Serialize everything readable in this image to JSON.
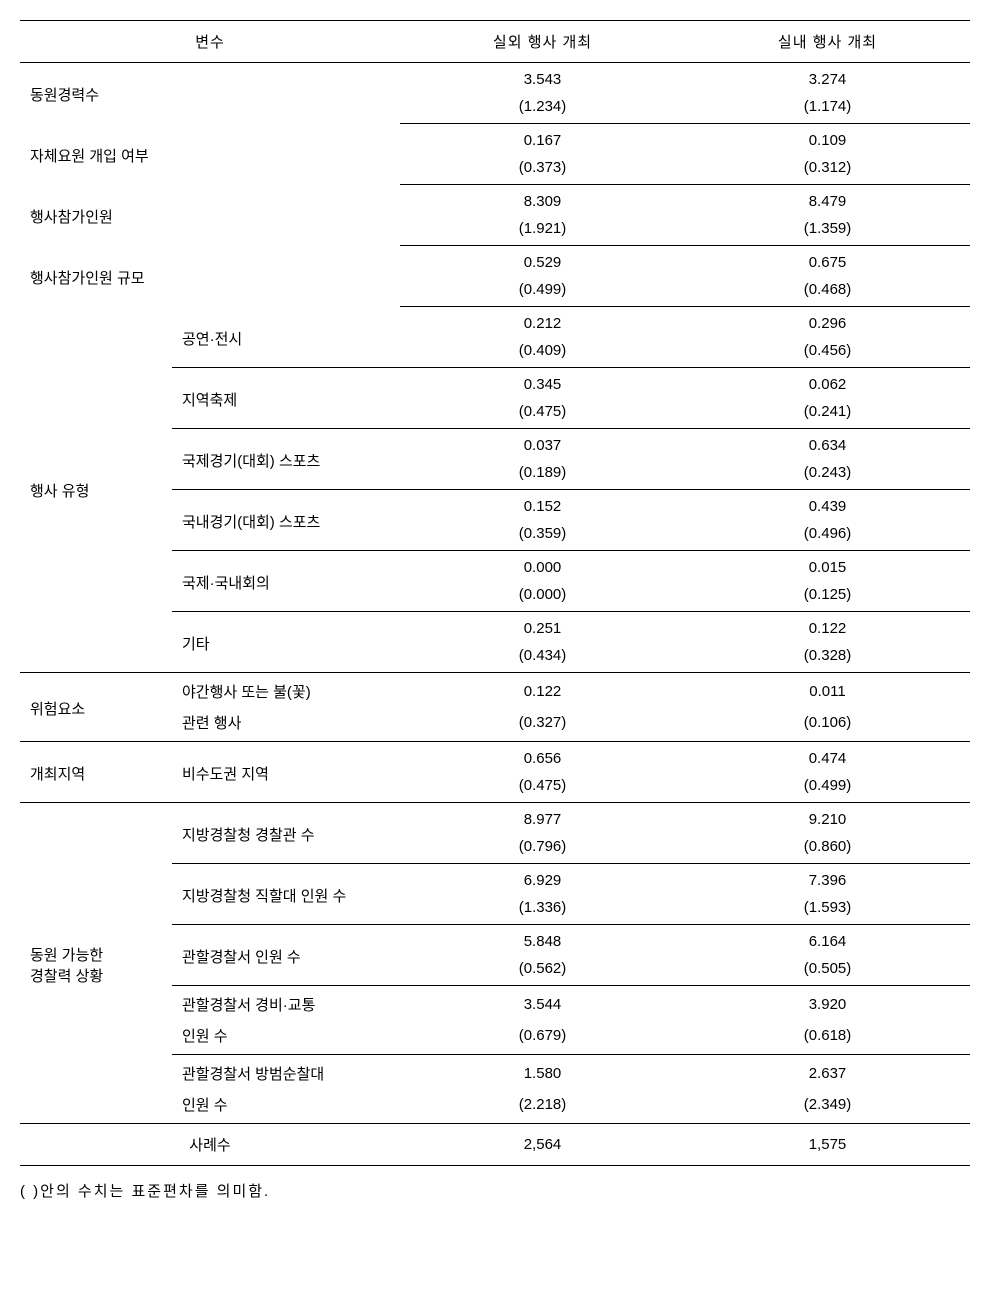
{
  "header": {
    "col1": "변수",
    "col2": "실외 행사 개최",
    "col3": "실내 행사 개최"
  },
  "rows": [
    {
      "label": "동원경력수",
      "span": 2,
      "outdoor_m": "3.543",
      "outdoor_sd": "(1.234)",
      "indoor_m": "3.274",
      "indoor_sd": "(1.174)"
    },
    {
      "label": "자체요원 개입 여부",
      "span": 2,
      "outdoor_m": "0.167",
      "outdoor_sd": "(0.373)",
      "indoor_m": "0.109",
      "indoor_sd": "(0.312)"
    },
    {
      "label": "행사참가인원",
      "span": 2,
      "outdoor_m": "8.309",
      "outdoor_sd": "(1.921)",
      "indoor_m": "8.479",
      "indoor_sd": "(1.359)"
    },
    {
      "label": "행사참가인원 규모",
      "span": 2,
      "outdoor_m": "0.529",
      "outdoor_sd": "(0.499)",
      "indoor_m": "0.675",
      "indoor_sd": "(0.468)"
    }
  ],
  "event_type": {
    "group_label": "행사 유형",
    "items": [
      {
        "label": "공연·전시",
        "outdoor_m": "0.212",
        "outdoor_sd": "(0.409)",
        "indoor_m": "0.296",
        "indoor_sd": "(0.456)"
      },
      {
        "label": "지역축제",
        "outdoor_m": "0.345",
        "outdoor_sd": "(0.475)",
        "indoor_m": "0.062",
        "indoor_sd": "(0.241)"
      },
      {
        "label": "국제경기(대회) 스포츠",
        "outdoor_m": "0.037",
        "outdoor_sd": "(0.189)",
        "indoor_m": "0.634",
        "indoor_sd": "(0.243)"
      },
      {
        "label": "국내경기(대회) 스포츠",
        "outdoor_m": "0.152",
        "outdoor_sd": "(0.359)",
        "indoor_m": "0.439",
        "indoor_sd": "(0.496)"
      },
      {
        "label": "국제·국내회의",
        "outdoor_m": "0.000",
        "outdoor_sd": "(0.000)",
        "indoor_m": "0.015",
        "indoor_sd": "(0.125)"
      },
      {
        "label": "기타",
        "outdoor_m": "0.251",
        "outdoor_sd": "(0.434)",
        "indoor_m": "0.122",
        "indoor_sd": "(0.328)"
      }
    ]
  },
  "risk": {
    "group_label": "위험요소",
    "sub_label_1": "야간행사 또는 불(꽃)",
    "sub_label_2": "관련 행사",
    "outdoor_m": "0.122",
    "outdoor_sd": "(0.327)",
    "indoor_m": "0.011",
    "indoor_sd": "(0.106)"
  },
  "region": {
    "group_label": "개최지역",
    "sub_label": "비수도권 지역",
    "outdoor_m": "0.656",
    "outdoor_sd": "(0.475)",
    "indoor_m": "0.474",
    "indoor_sd": "(0.499)"
  },
  "police": {
    "group_label_1": "동원 가능한",
    "group_label_2": "경찰력 상황",
    "items": [
      {
        "label": "지방경찰청 경찰관 수",
        "outdoor_m": "8.977",
        "outdoor_sd": "(0.796)",
        "indoor_m": "9.210",
        "indoor_sd": "(0.860)"
      },
      {
        "label": "지방경찰청 직할대 인원 수",
        "outdoor_m": "6.929",
        "outdoor_sd": "(1.336)",
        "indoor_m": "7.396",
        "indoor_sd": "(1.593)"
      },
      {
        "label": "관할경찰서 인원 수",
        "outdoor_m": "5.848",
        "outdoor_sd": "(0.562)",
        "indoor_m": "6.164",
        "indoor_sd": "(0.505)"
      }
    ],
    "multiline": [
      {
        "label_1": "관할경찰서 경비·교통",
        "label_2": "인원 수",
        "outdoor_m": "3.544",
        "outdoor_sd": "(0.679)",
        "indoor_m": "3.920",
        "indoor_sd": "(0.618)"
      },
      {
        "label_1": "관할경찰서 방범순찰대",
        "label_2": "인원 수",
        "outdoor_m": "1.580",
        "outdoor_sd": "(2.218)",
        "indoor_m": "2.637",
        "indoor_sd": "(2.349)"
      }
    ]
  },
  "summary": {
    "label": "사례수",
    "outdoor": "2,564",
    "indoor": "1,575"
  },
  "footnote": "(   )안의 수치는 표준편차를 의미함.",
  "style": {
    "background_color": "#ffffff",
    "text_color": "#000000",
    "border_color": "#000000",
    "font_size": 15
  }
}
